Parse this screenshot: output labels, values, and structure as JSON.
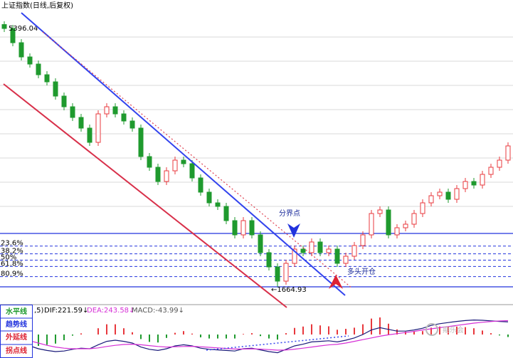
{
  "chart_data": [
    {
      "type": "candlestick",
      "title": "上证指数(日线,后复权)",
      "up_color": "#e8383d",
      "down_color": "#1f9a2e",
      "ylim": [
        1445,
        5545
      ],
      "open": [
        5350,
        5295,
        5095,
        4895,
        4795,
        4645,
        4545,
        4345,
        4195,
        4045,
        3895,
        3695,
        4095,
        4195,
        4095,
        3995,
        3895,
        3495,
        3345,
        3145,
        3295,
        3445,
        3395,
        3195,
        2995,
        2845,
        2795,
        2595,
        2395,
        2595,
        2395,
        2145,
        1945,
        1745,
        1995,
        2195,
        2145,
        2295,
        2145,
        2195,
        1995,
        2095,
        2245,
        2395,
        2695,
        2745,
        2395,
        2495,
        2545,
        2695,
        2845,
        2945,
        2995,
        2895,
        3045,
        3145,
        3095,
        3245,
        3345,
        3445
      ],
      "high": [
        5396.04,
        5345,
        5145,
        4945,
        4845,
        4695,
        4595,
        4395,
        4245,
        4095,
        3945,
        4145,
        4245,
        4245,
        4145,
        4045,
        3945,
        3545,
        3395,
        3345,
        3495,
        3495,
        3445,
        3245,
        3045,
        2895,
        2845,
        2645,
        2645,
        2645,
        2445,
        2195,
        1995,
        2045,
        2245,
        2245,
        2345,
        2345,
        2245,
        2245,
        2145,
        2295,
        2445,
        2745,
        2795,
        2795,
        2545,
        2595,
        2745,
        2895,
        2995,
        3045,
        3045,
        3095,
        3195,
        3195,
        3295,
        3395,
        3495,
        3695
      ],
      "low": [
        5245,
        5045,
        4845,
        4745,
        4595,
        4495,
        4295,
        4145,
        3995,
        3845,
        3645,
        3645,
        4045,
        4045,
        3945,
        3845,
        3445,
        3295,
        3095,
        3095,
        3245,
        3345,
        3145,
        2945,
        2795,
        2745,
        2545,
        2345,
        2345,
        2345,
        2095,
        1895,
        1664.93,
        1695,
        1945,
        2095,
        2095,
        2095,
        2095,
        1945,
        1945,
        2045,
        2195,
        2345,
        2645,
        2345,
        2345,
        2445,
        2495,
        2645,
        2795,
        2895,
        2845,
        2845,
        2995,
        3045,
        3045,
        3195,
        3295,
        3395
      ],
      "close": [
        5295,
        5095,
        4895,
        4795,
        4645,
        4545,
        4345,
        4195,
        4045,
        3895,
        3695,
        4095,
        4195,
        4095,
        3995,
        3895,
        3495,
        3345,
        3145,
        3295,
        3445,
        3395,
        3195,
        2995,
        2845,
        2795,
        2595,
        2395,
        2595,
        2395,
        2145,
        1945,
        1745,
        1995,
        2195,
        2145,
        2295,
        2145,
        2195,
        1995,
        2095,
        2245,
        2395,
        2695,
        2745,
        2395,
        2495,
        2545,
        2695,
        2845,
        2945,
        2995,
        2895,
        3045,
        3145,
        3095,
        3245,
        3345,
        3445,
        3645
      ],
      "price_labels": [
        {
          "value": 5396.04,
          "label": "5396.04"
        },
        {
          "value": 1664.93,
          "label": "←1664.93"
        }
      ],
      "fib_levels": [
        {
          "value": 23.6,
          "label": "23.6%"
        },
        {
          "value": 38.2,
          "label": "38.2%"
        },
        {
          "value": 50,
          "label": "50%"
        },
        {
          "value": 61.8,
          "label": "61.8%"
        },
        {
          "value": 80.9,
          "label": "80.9%"
        }
      ],
      "annotations": [
        "分界点",
        "多头开仓"
      ]
    },
    {
      "type": "macd",
      "prefix": ",5)",
      "legend_labels": [
        "DIF:221.59↓",
        "DEA:243.58↓",
        "MACD:-43.99↓"
      ],
      "ylim": [
        -400,
        400
      ],
      "series": [
        {
          "name": "DIF",
          "color": "#1a1a7a",
          "values": [
            -30,
            -80,
            -150,
            -200,
            -250,
            -280,
            -300,
            -290,
            -260,
            -240,
            -250,
            -180,
            -120,
            -100,
            -120,
            -150,
            -220,
            -260,
            -280,
            -250,
            -200,
            -180,
            -200,
            -240,
            -260,
            -270,
            -280,
            -290,
            -250,
            -240,
            -270,
            -300,
            -320,
            -260,
            -200,
            -170,
            -130,
            -120,
            -110,
            -130,
            -100,
            -60,
            0,
            80,
            120,
            90,
            60,
            60,
            80,
            110,
            160,
            190,
            210,
            230,
            245,
            255,
            250,
            240,
            230,
            221.59
          ]
        },
        {
          "name": "DEA",
          "color": "#d62fd6",
          "values": [
            -20,
            -40,
            -70,
            -110,
            -150,
            -190,
            -220,
            -240,
            -250,
            -250,
            -250,
            -235,
            -210,
            -190,
            -175,
            -170,
            -180,
            -195,
            -210,
            -220,
            -215,
            -210,
            -208,
            -215,
            -225,
            -235,
            -245,
            -255,
            -255,
            -252,
            -256,
            -265,
            -275,
            -272,
            -258,
            -240,
            -220,
            -200,
            -182,
            -172,
            -150,
            -120,
            -90,
            -60,
            -30,
            -5,
            15,
            35,
            55,
            80,
            100,
            120,
            140,
            160,
            180,
            200,
            215,
            228,
            238,
            243.58
          ]
        },
        {
          "name": "MACD",
          "color": "#e8383d",
          "values": [
            -20,
            -80,
            -160,
            -180,
            -200,
            -180,
            -160,
            -100,
            -20,
            20,
            0,
            110,
            180,
            180,
            110,
            40,
            -80,
            -130,
            -140,
            -60,
            30,
            60,
            16,
            -50,
            -70,
            -70,
            -70,
            -70,
            10,
            24,
            -28,
            -70,
            -90,
            24,
            116,
            140,
            180,
            160,
            144,
            84,
            100,
            120,
            180,
            280,
            300,
            190,
            90,
            50,
            50,
            60,
            120,
            140,
            140,
            140,
            130,
            110,
            70,
            24,
            -16,
            -43.99
          ]
        }
      ]
    },
    {
      "type": "tools",
      "labels": [
        "水平线",
        "趋势线",
        "外延线",
        "拐点线"
      ],
      "watermark": "期乐会"
    }
  ]
}
